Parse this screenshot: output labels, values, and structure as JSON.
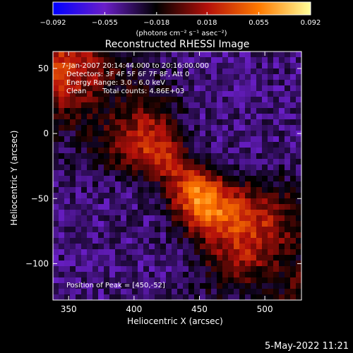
{
  "chart_data": {
    "type": "heatmap",
    "title": "Reconstructed RHESSI Image",
    "xlabel": "Heliocentric X (arcsec)",
    "ylabel": "Heliocentric Y (arcsec)",
    "xlim": [
      338,
      528
    ],
    "ylim": [
      -128,
      63
    ],
    "x_ticks": [
      350,
      400,
      450,
      500
    ],
    "y_ticks": [
      50,
      0,
      -50,
      -100
    ],
    "x_tick_labels": [
      "350",
      "400",
      "450",
      "500"
    ],
    "y_tick_labels": [
      "50",
      "0",
      "−50",
      "−100"
    ],
    "colorbar": {
      "range": [
        -0.092,
        0.092
      ],
      "ticks": [
        -0.092,
        -0.055,
        -0.018,
        0.018,
        0.055,
        0.092
      ],
      "tick_labels": [
        "−0.092",
        "−0.055",
        "−0.018",
        "0.018",
        "0.055",
        "0.092"
      ],
      "unit_label": "(photons cm⁻² s⁻¹ asec⁻²)",
      "colors": [
        "#0000ff",
        "#6a1ec8",
        "#000000",
        "#b4100a",
        "#ff7a00",
        "#ffff9a"
      ]
    },
    "annotations": {
      "time": "7-Jan-2007 20:14:44.000 to 20:16:00.000",
      "detectors": "Detectors: 3F 4F 5F 6F 7F 8F, Att 0",
      "energy": "Energy Range: 3.0 - 6.0 keV",
      "clean": "Clean",
      "counts": "Total counts: 4.86E+03",
      "peak": "Position of Peak = [450,-52]"
    },
    "peak": [
      450,
      -52
    ],
    "emission_ridge": {
      "from": [
        338,
        58
      ],
      "to": [
        528,
        -112
      ],
      "peak_value": 0.092,
      "background_value": -0.04
    }
  },
  "footer": {
    "timestamp": "5-May-2022 11:21"
  }
}
